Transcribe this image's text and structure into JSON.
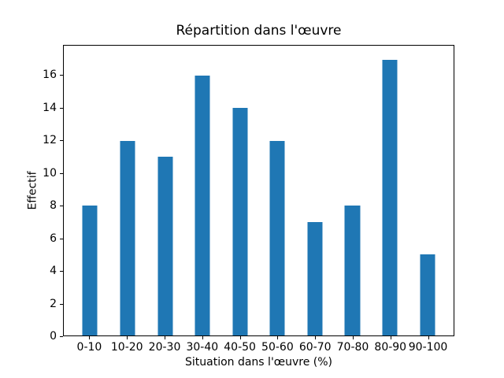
{
  "chart_data": {
    "type": "bar",
    "title": "Répartition dans l'œuvre",
    "xlabel": "Situation dans l'œuvre (%)",
    "ylabel": "Effectif",
    "categories": [
      "0-10",
      "10-20",
      "20-30",
      "30-40",
      "40-50",
      "50-60",
      "60-70",
      "70-80",
      "80-90",
      "90-100"
    ],
    "values": [
      8,
      12,
      11,
      16,
      14,
      12,
      7,
      8,
      17,
      5
    ],
    "yticks": [
      0,
      2,
      4,
      6,
      8,
      10,
      12,
      14,
      16
    ],
    "ylim": [
      0,
      17.85
    ],
    "xlim": [
      -2,
      102
    ],
    "bar_x": [
      5,
      15,
      25,
      35,
      45,
      55,
      65,
      75,
      85,
      95
    ],
    "bar_width_units": 4,
    "bar_color": "#1f77b4",
    "grid": false,
    "legend_position": "none"
  }
}
